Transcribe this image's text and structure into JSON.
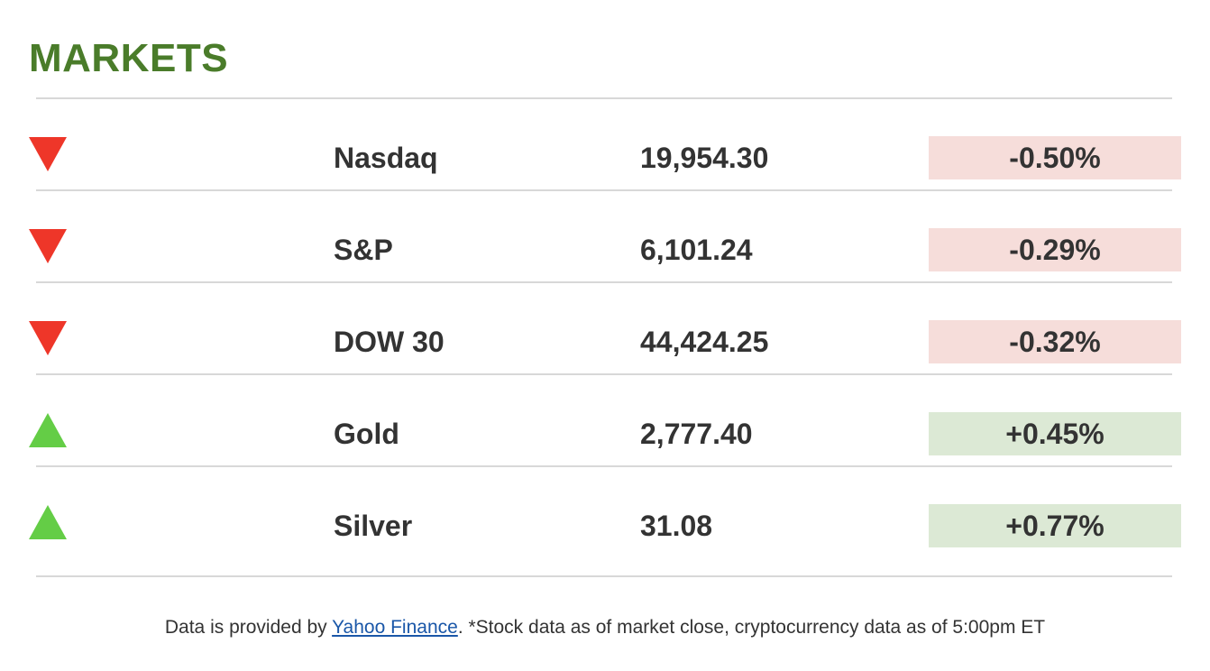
{
  "title": "MARKETS",
  "colors": {
    "title": "#4a7c2a",
    "down_arrow": "#ee3629",
    "up_arrow": "#64cd46",
    "negative_bg": "#f6ddda",
    "positive_bg": "#dce9d5",
    "link": "#1a57a8"
  },
  "markets": [
    {
      "direction": "down",
      "icon": "down-triangle-icon",
      "name": "Nasdaq",
      "value": "19,954.30",
      "change": "-0.50%"
    },
    {
      "direction": "down",
      "icon": "down-triangle-icon",
      "name": "S&P",
      "value": "6,101.24",
      "change": "-0.29%"
    },
    {
      "direction": "down",
      "icon": "down-triangle-icon",
      "name": "DOW 30",
      "value": "44,424.25",
      "change": "-0.32%"
    },
    {
      "direction": "up",
      "icon": "up-triangle-icon",
      "name": "Gold",
      "value": "2,777.40",
      "change": "+0.45%"
    },
    {
      "direction": "up",
      "icon": "up-triangle-icon",
      "name": "Silver",
      "value": "31.08",
      "change": "+0.77%"
    }
  ],
  "footer": {
    "prefix": "Data is provided by ",
    "link_text": "Yahoo Finance",
    "suffix": ". *Stock data as of market close, cryptocurrency data as of 5:00pm ET"
  }
}
